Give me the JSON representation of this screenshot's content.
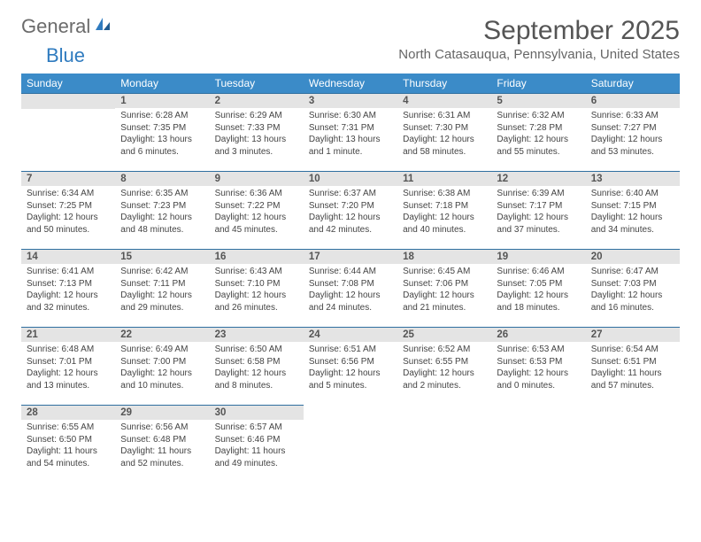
{
  "logo": {
    "text1": "General",
    "text2": "Blue"
  },
  "title": "September 2025",
  "subtitle": "North Catasauqua, Pennsylvania, United States",
  "headers": [
    "Sunday",
    "Monday",
    "Tuesday",
    "Wednesday",
    "Thursday",
    "Friday",
    "Saturday"
  ],
  "colors": {
    "header_bg": "#3b8bc8",
    "header_text": "#ffffff",
    "daynum_bg": "#e4e4e4",
    "row_border": "#2f6fa0",
    "logo_gray": "#6b6b6b",
    "logo_blue": "#2f7bbf"
  },
  "weeks": [
    [
      {
        "n": "",
        "sr": "",
        "ss": "",
        "dl1": "",
        "dl2": ""
      },
      {
        "n": "1",
        "sr": "Sunrise: 6:28 AM",
        "ss": "Sunset: 7:35 PM",
        "dl1": "Daylight: 13 hours",
        "dl2": "and 6 minutes."
      },
      {
        "n": "2",
        "sr": "Sunrise: 6:29 AM",
        "ss": "Sunset: 7:33 PM",
        "dl1": "Daylight: 13 hours",
        "dl2": "and 3 minutes."
      },
      {
        "n": "3",
        "sr": "Sunrise: 6:30 AM",
        "ss": "Sunset: 7:31 PM",
        "dl1": "Daylight: 13 hours",
        "dl2": "and 1 minute."
      },
      {
        "n": "4",
        "sr": "Sunrise: 6:31 AM",
        "ss": "Sunset: 7:30 PM",
        "dl1": "Daylight: 12 hours",
        "dl2": "and 58 minutes."
      },
      {
        "n": "5",
        "sr": "Sunrise: 6:32 AM",
        "ss": "Sunset: 7:28 PM",
        "dl1": "Daylight: 12 hours",
        "dl2": "and 55 minutes."
      },
      {
        "n": "6",
        "sr": "Sunrise: 6:33 AM",
        "ss": "Sunset: 7:27 PM",
        "dl1": "Daylight: 12 hours",
        "dl2": "and 53 minutes."
      }
    ],
    [
      {
        "n": "7",
        "sr": "Sunrise: 6:34 AM",
        "ss": "Sunset: 7:25 PM",
        "dl1": "Daylight: 12 hours",
        "dl2": "and 50 minutes."
      },
      {
        "n": "8",
        "sr": "Sunrise: 6:35 AM",
        "ss": "Sunset: 7:23 PM",
        "dl1": "Daylight: 12 hours",
        "dl2": "and 48 minutes."
      },
      {
        "n": "9",
        "sr": "Sunrise: 6:36 AM",
        "ss": "Sunset: 7:22 PM",
        "dl1": "Daylight: 12 hours",
        "dl2": "and 45 minutes."
      },
      {
        "n": "10",
        "sr": "Sunrise: 6:37 AM",
        "ss": "Sunset: 7:20 PM",
        "dl1": "Daylight: 12 hours",
        "dl2": "and 42 minutes."
      },
      {
        "n": "11",
        "sr": "Sunrise: 6:38 AM",
        "ss": "Sunset: 7:18 PM",
        "dl1": "Daylight: 12 hours",
        "dl2": "and 40 minutes."
      },
      {
        "n": "12",
        "sr": "Sunrise: 6:39 AM",
        "ss": "Sunset: 7:17 PM",
        "dl1": "Daylight: 12 hours",
        "dl2": "and 37 minutes."
      },
      {
        "n": "13",
        "sr": "Sunrise: 6:40 AM",
        "ss": "Sunset: 7:15 PM",
        "dl1": "Daylight: 12 hours",
        "dl2": "and 34 minutes."
      }
    ],
    [
      {
        "n": "14",
        "sr": "Sunrise: 6:41 AM",
        "ss": "Sunset: 7:13 PM",
        "dl1": "Daylight: 12 hours",
        "dl2": "and 32 minutes."
      },
      {
        "n": "15",
        "sr": "Sunrise: 6:42 AM",
        "ss": "Sunset: 7:11 PM",
        "dl1": "Daylight: 12 hours",
        "dl2": "and 29 minutes."
      },
      {
        "n": "16",
        "sr": "Sunrise: 6:43 AM",
        "ss": "Sunset: 7:10 PM",
        "dl1": "Daylight: 12 hours",
        "dl2": "and 26 minutes."
      },
      {
        "n": "17",
        "sr": "Sunrise: 6:44 AM",
        "ss": "Sunset: 7:08 PM",
        "dl1": "Daylight: 12 hours",
        "dl2": "and 24 minutes."
      },
      {
        "n": "18",
        "sr": "Sunrise: 6:45 AM",
        "ss": "Sunset: 7:06 PM",
        "dl1": "Daylight: 12 hours",
        "dl2": "and 21 minutes."
      },
      {
        "n": "19",
        "sr": "Sunrise: 6:46 AM",
        "ss": "Sunset: 7:05 PM",
        "dl1": "Daylight: 12 hours",
        "dl2": "and 18 minutes."
      },
      {
        "n": "20",
        "sr": "Sunrise: 6:47 AM",
        "ss": "Sunset: 7:03 PM",
        "dl1": "Daylight: 12 hours",
        "dl2": "and 16 minutes."
      }
    ],
    [
      {
        "n": "21",
        "sr": "Sunrise: 6:48 AM",
        "ss": "Sunset: 7:01 PM",
        "dl1": "Daylight: 12 hours",
        "dl2": "and 13 minutes."
      },
      {
        "n": "22",
        "sr": "Sunrise: 6:49 AM",
        "ss": "Sunset: 7:00 PM",
        "dl1": "Daylight: 12 hours",
        "dl2": "and 10 minutes."
      },
      {
        "n": "23",
        "sr": "Sunrise: 6:50 AM",
        "ss": "Sunset: 6:58 PM",
        "dl1": "Daylight: 12 hours",
        "dl2": "and 8 minutes."
      },
      {
        "n": "24",
        "sr": "Sunrise: 6:51 AM",
        "ss": "Sunset: 6:56 PM",
        "dl1": "Daylight: 12 hours",
        "dl2": "and 5 minutes."
      },
      {
        "n": "25",
        "sr": "Sunrise: 6:52 AM",
        "ss": "Sunset: 6:55 PM",
        "dl1": "Daylight: 12 hours",
        "dl2": "and 2 minutes."
      },
      {
        "n": "26",
        "sr": "Sunrise: 6:53 AM",
        "ss": "Sunset: 6:53 PM",
        "dl1": "Daylight: 12 hours",
        "dl2": "and 0 minutes."
      },
      {
        "n": "27",
        "sr": "Sunrise: 6:54 AM",
        "ss": "Sunset: 6:51 PM",
        "dl1": "Daylight: 11 hours",
        "dl2": "and 57 minutes."
      }
    ],
    [
      {
        "n": "28",
        "sr": "Sunrise: 6:55 AM",
        "ss": "Sunset: 6:50 PM",
        "dl1": "Daylight: 11 hours",
        "dl2": "and 54 minutes."
      },
      {
        "n": "29",
        "sr": "Sunrise: 6:56 AM",
        "ss": "Sunset: 6:48 PM",
        "dl1": "Daylight: 11 hours",
        "dl2": "and 52 minutes."
      },
      {
        "n": "30",
        "sr": "Sunrise: 6:57 AM",
        "ss": "Sunset: 6:46 PM",
        "dl1": "Daylight: 11 hours",
        "dl2": "and 49 minutes."
      },
      {
        "n": "",
        "sr": "",
        "ss": "",
        "dl1": "",
        "dl2": ""
      },
      {
        "n": "",
        "sr": "",
        "ss": "",
        "dl1": "",
        "dl2": ""
      },
      {
        "n": "",
        "sr": "",
        "ss": "",
        "dl1": "",
        "dl2": ""
      },
      {
        "n": "",
        "sr": "",
        "ss": "",
        "dl1": "",
        "dl2": ""
      }
    ]
  ]
}
